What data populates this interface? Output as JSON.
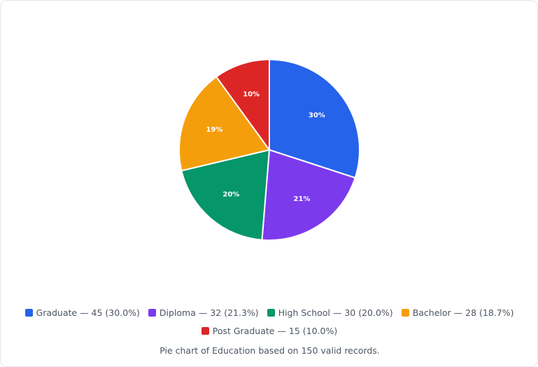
{
  "chart_data": {
    "type": "pie",
    "categories": [
      "Graduate — 45 (30.0%)",
      "Diploma — 32 (21.3%)",
      "High School — 30 (20.0%)",
      "Bachelor — 28 (18.7%)",
      "Post Graduate — 15 (10.0%)"
    ],
    "values": [
      30.0,
      21.3,
      20.0,
      18.7,
      10.0
    ],
    "value_labels": [
      "30%",
      "21%",
      "20%",
      "19%",
      "10%"
    ],
    "colors": [
      "#2563eb",
      "#7c3aed",
      "#059669",
      "#f59e0b",
      "#dc2626"
    ],
    "caption": "Pie chart of Education based on 150 valid records."
  }
}
